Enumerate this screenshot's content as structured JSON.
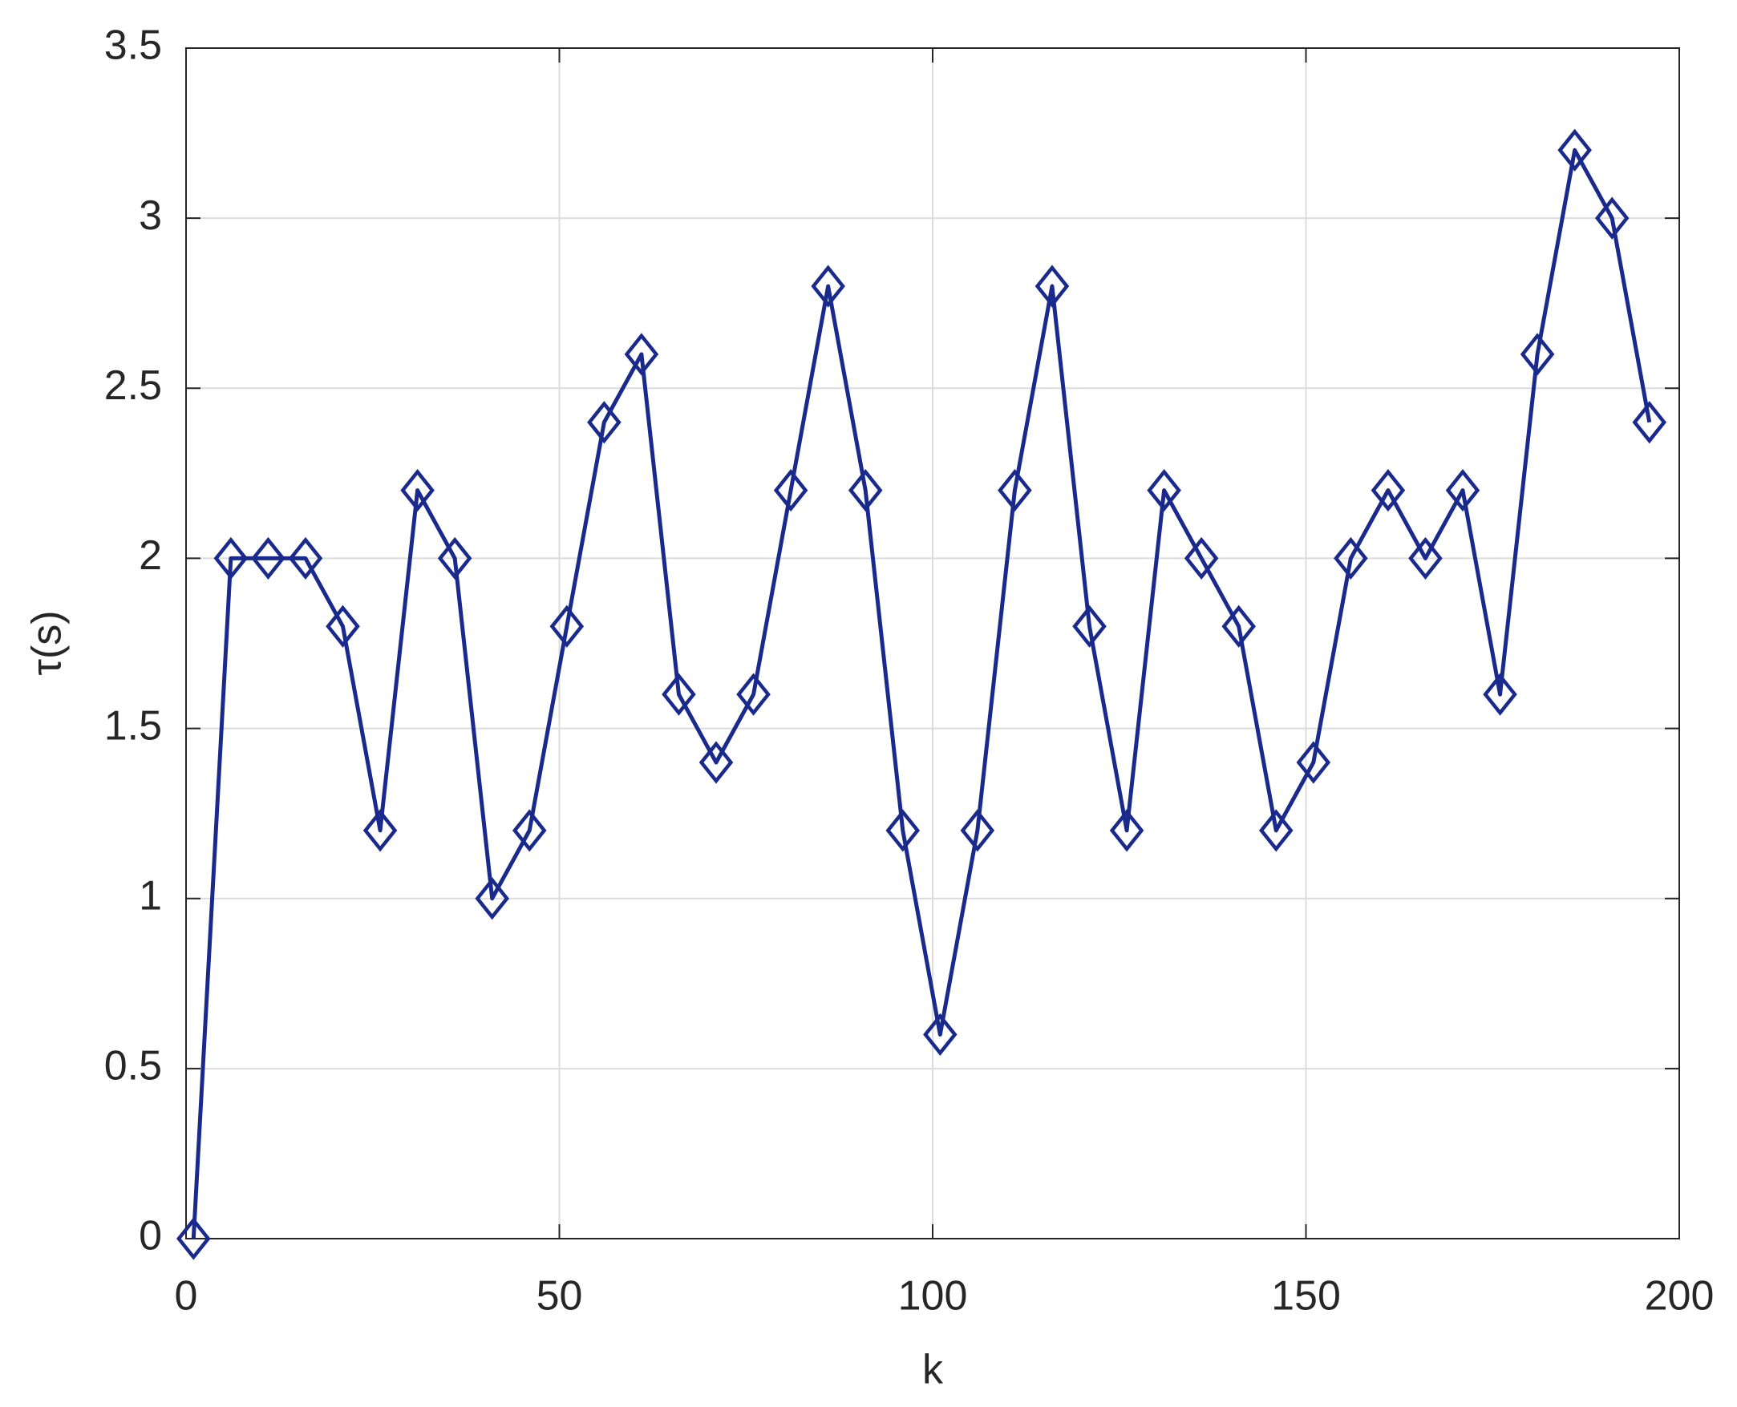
{
  "chart_data": {
    "type": "line",
    "xlabel": "k",
    "ylabel": "τ(s)",
    "x": [
      1,
      6,
      11,
      16,
      21,
      26,
      31,
      36,
      41,
      46,
      51,
      56,
      61,
      66,
      71,
      76,
      81,
      86,
      91,
      96,
      101,
      106,
      111,
      116,
      121,
      126,
      131,
      136,
      141,
      146,
      151,
      156,
      161,
      166,
      171,
      176,
      181,
      186,
      191,
      196
    ],
    "series": [
      {
        "color": "#1a2a8c",
        "marker": "diamond",
        "values": [
          0,
          2,
          2,
          2,
          1.8,
          1.2,
          2.2,
          2,
          1,
          1.2,
          1.8,
          2.4,
          2.6,
          1.6,
          1.4,
          1.6,
          2.2,
          2.8,
          2.2,
          1.2,
          0.6,
          1.2,
          2.2,
          2.8,
          1.8,
          1.2,
          2.2,
          2,
          1.8,
          1.2,
          1.4,
          2,
          2.2,
          2,
          2.2,
          1.6,
          2.6,
          3.2,
          3,
          2.4
        ]
      }
    ],
    "xlim": [
      0,
      200
    ],
    "xticks": [
      0,
      50,
      100,
      150,
      200
    ],
    "ylim": [
      0,
      3.5
    ],
    "yticks": [
      0,
      0.5,
      1,
      1.5,
      2,
      2.5,
      3,
      3.5
    ],
    "grid": true
  }
}
